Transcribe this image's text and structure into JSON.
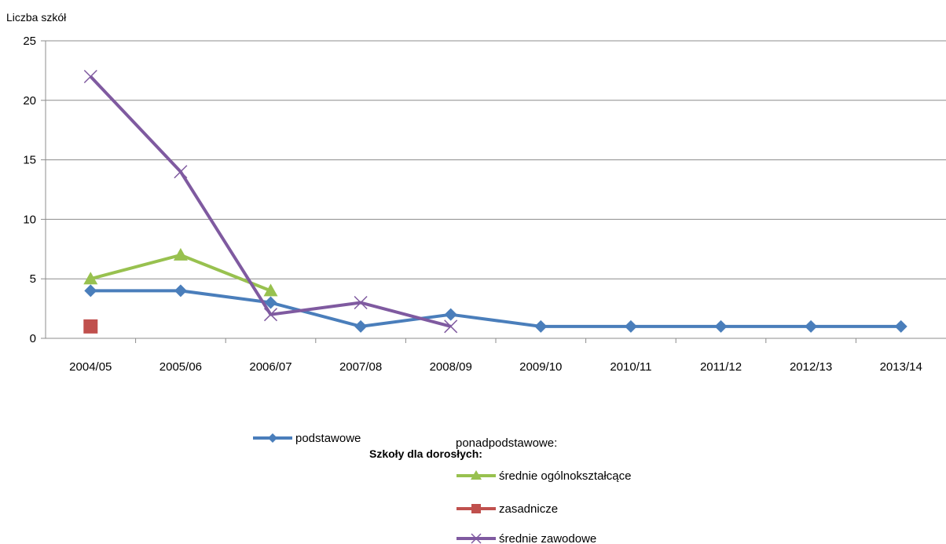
{
  "chart_data": {
    "type": "line",
    "title": "",
    "ylabel": "Liczba szkół",
    "xlabel": "",
    "categories": [
      "2004/05",
      "2005/06",
      "2006/07",
      "2007/08",
      "2008/09",
      "2009/10",
      "2010/11",
      "2011/12",
      "2012/13",
      "2013/14"
    ],
    "ylim": [
      0,
      25
    ],
    "yticks": [
      0,
      5,
      10,
      15,
      20,
      25
    ],
    "grid": true,
    "legend_title": "Szkoły dla dorosłych:",
    "legend_subheading": "ponadpodstawowe:",
    "legend_placement": "bottom",
    "series": [
      {
        "name": "podstawowe",
        "color": "#4a7ebb",
        "marker": "diamond",
        "values": [
          4,
          4,
          3,
          1,
          2,
          1,
          1,
          1,
          1,
          1
        ]
      },
      {
        "name": "średnie ogólnokształcące",
        "color": "#98c14f",
        "marker": "triangle",
        "values": [
          5,
          7,
          4,
          null,
          null,
          null,
          null,
          null,
          null,
          null
        ]
      },
      {
        "name": "zasadnicze",
        "color": "#c0504d",
        "marker": "square",
        "values": [
          1,
          null,
          null,
          null,
          null,
          null,
          null,
          null,
          null,
          null
        ]
      },
      {
        "name": "średnie zawodowe",
        "color": "#7f5aa0",
        "marker": "x",
        "values": [
          22,
          14,
          2,
          3,
          1,
          null,
          null,
          null,
          null,
          null
        ]
      }
    ]
  }
}
